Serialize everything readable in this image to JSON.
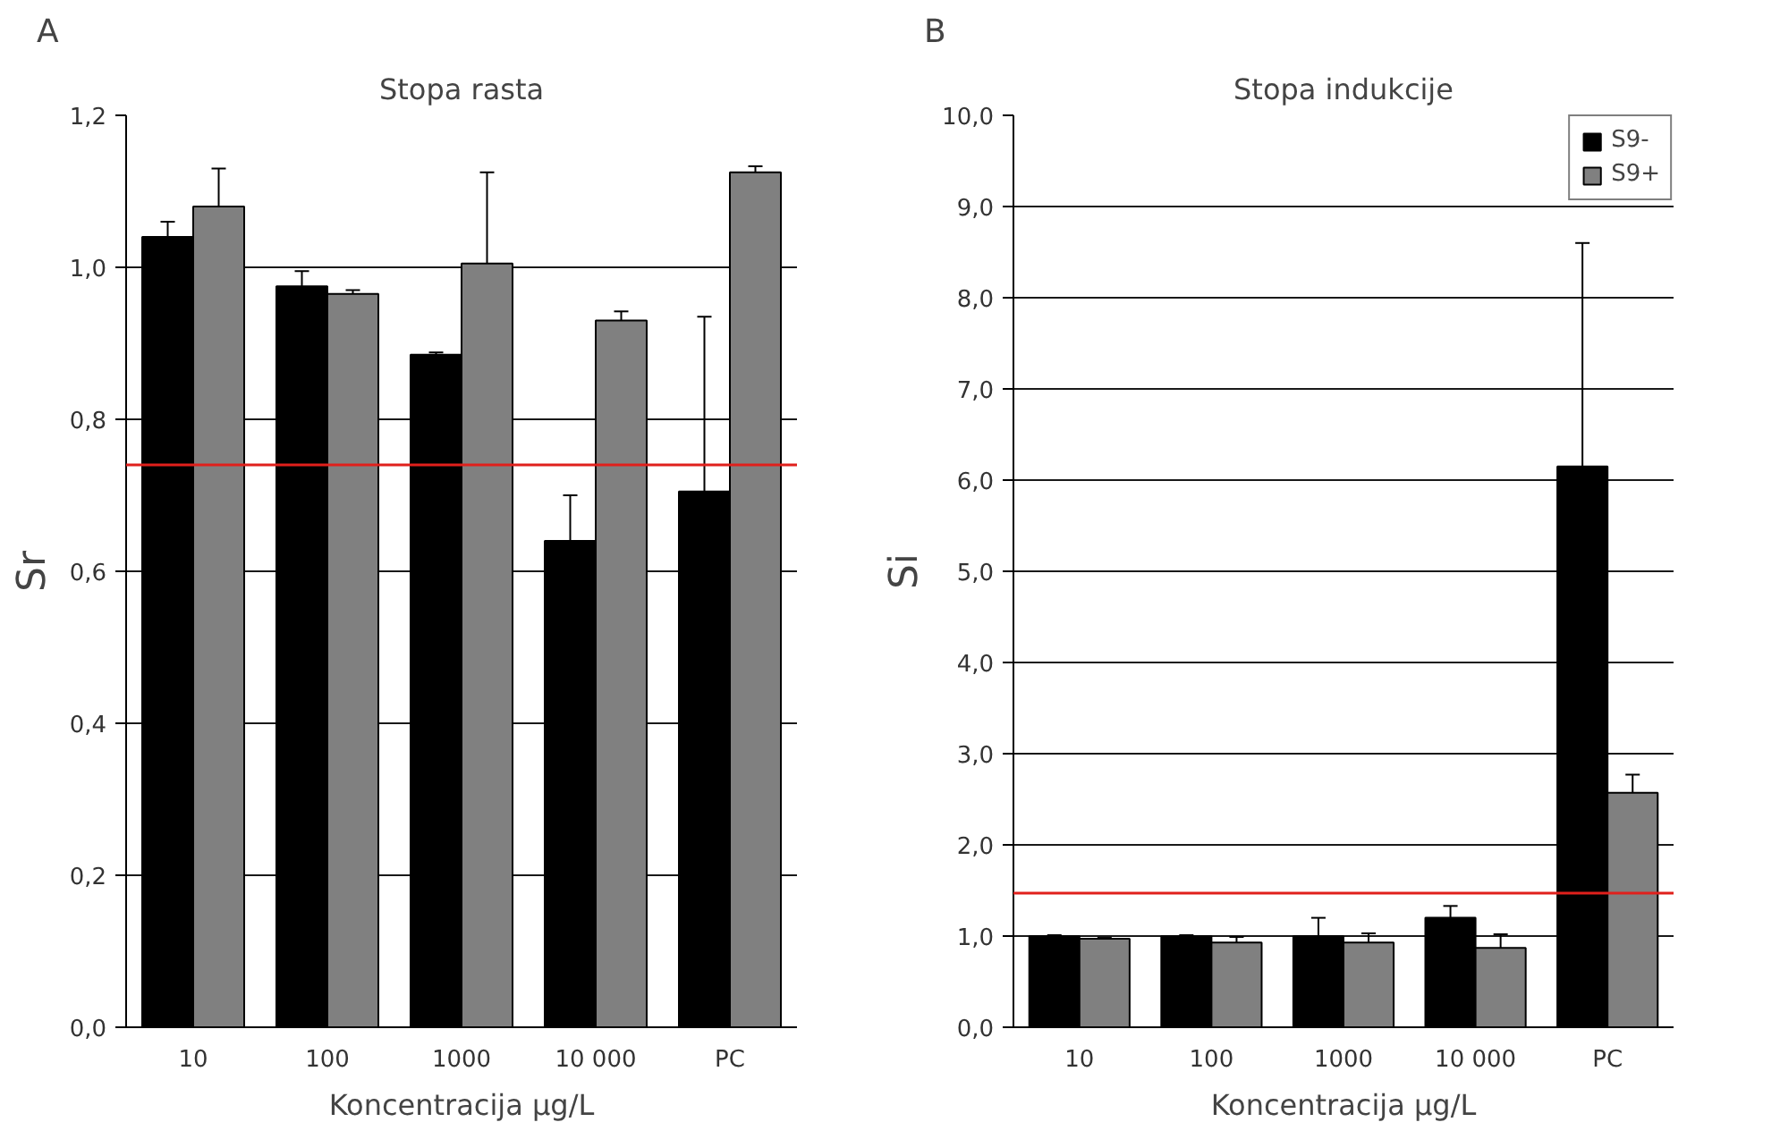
{
  "chart_data": [
    {
      "type": "bar",
      "title": "Stopa rasta",
      "xlabel": "Koncentracija µg/L",
      "ylabel": "Sr",
      "annotations": [
        "A"
      ],
      "categories": [
        "10",
        "100",
        "1000",
        "10 000",
        "PC"
      ],
      "series": [
        {
          "color": "#000000",
          "values": [
            1.04,
            0.975,
            0.885,
            0.64,
            0.705
          ],
          "errors": [
            0.02,
            0.02,
            0.003,
            0.06,
            0.23
          ]
        },
        {
          "color": "#808080",
          "values": [
            1.08,
            0.965,
            1.005,
            0.93,
            1.125
          ],
          "errors": [
            0.05,
            0.005,
            0.12,
            0.012,
            0.008
          ]
        }
      ],
      "ylim": [
        0,
        1.2
      ],
      "yticks": [
        {
          "value": 0,
          "label": "0,0"
        },
        {
          "value": 0.2,
          "label": "0,2"
        },
        {
          "value": 0.4,
          "label": "0,4"
        },
        {
          "value": 0.6,
          "label": "0,6"
        },
        {
          "value": 0.8,
          "label": "0,8"
        },
        {
          "value": 1.0,
          "label": "1,0"
        },
        {
          "value": 1.2,
          "label": "1,2"
        }
      ],
      "grid": "y",
      "legend": false,
      "ref_lines": [
        {
          "axis": "y",
          "value": 0.74,
          "color": "#e0201c"
        }
      ]
    },
    {
      "type": "bar",
      "title": "Stopa indukcije",
      "xlabel": "Koncentracija µg/L",
      "ylabel": "Si",
      "annotations": [
        "B"
      ],
      "categories": [
        "10",
        "100",
        "1000",
        "10 000",
        "PC"
      ],
      "series": [
        {
          "name": "S9-",
          "color": "#000000",
          "values": [
            1.0,
            1.0,
            1.0,
            1.2,
            6.15
          ],
          "errors": [
            0.01,
            0.01,
            0.2,
            0.13,
            2.45
          ]
        },
        {
          "name": "S9+",
          "color": "#808080",
          "values": [
            0.97,
            0.93,
            0.93,
            0.87,
            2.57
          ],
          "errors": [
            0.01,
            0.06,
            0.1,
            0.15,
            0.2
          ]
        }
      ],
      "ylim": [
        0,
        10
      ],
      "yticks": [
        {
          "value": 0,
          "label": "0,0"
        },
        {
          "value": 1,
          "label": "1,0"
        },
        {
          "value": 2,
          "label": "2,0"
        },
        {
          "value": 3,
          "label": "3,0"
        },
        {
          "value": 4,
          "label": "4,0"
        },
        {
          "value": 5,
          "label": "5,0"
        },
        {
          "value": 6,
          "label": "6,0"
        },
        {
          "value": 7,
          "label": "7,0"
        },
        {
          "value": 8,
          "label": "8,0"
        },
        {
          "value": 9,
          "label": "9,0"
        },
        {
          "value": 10,
          "label": "10,0"
        }
      ],
      "grid": "y",
      "legend": "top right",
      "ref_lines": [
        {
          "axis": "y",
          "value": 1.47,
          "color": "#e0201c"
        }
      ]
    }
  ]
}
